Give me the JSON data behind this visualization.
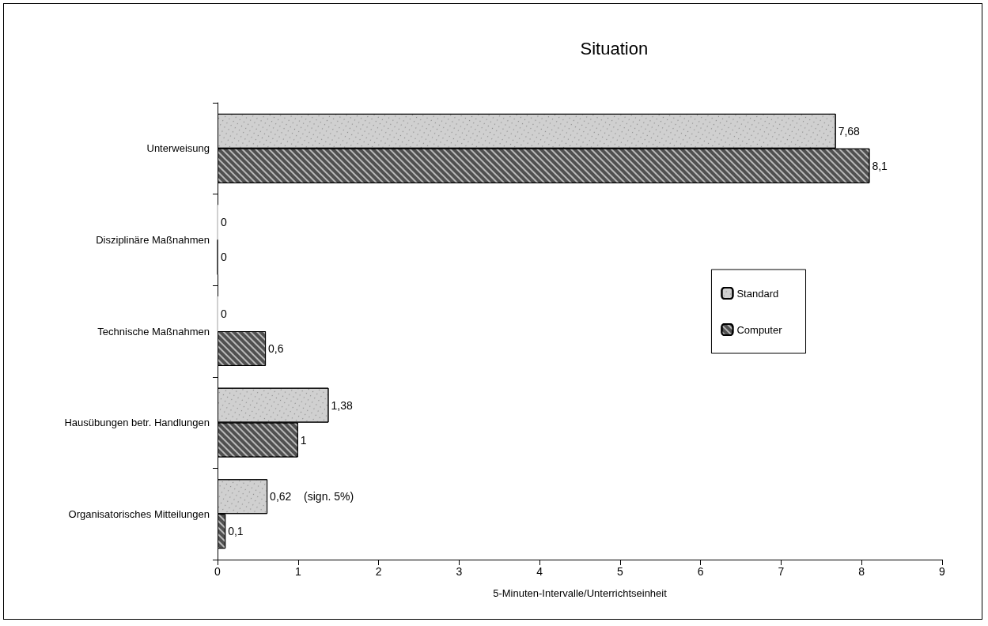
{
  "chart_data": {
    "type": "bar",
    "orientation": "horizontal",
    "title": "Situation",
    "xlabel": "5-Minuten-Intervalle/Unterrichtseinheit",
    "categories": [
      "Unterweisung",
      "Disziplinäre Maßnahmen",
      "Technische Maßnahmen",
      "Hausübungen betr. Handlungen",
      "Organisatorisches Mitteilungen"
    ],
    "series": [
      {
        "name": "Standard",
        "color": "#d0d0d0",
        "values": [
          7.68,
          0,
          0,
          1.38,
          0.62
        ],
        "value_labels": [
          "7,68",
          "0",
          "0",
          "1,38",
          "0,62"
        ]
      },
      {
        "name": "Computer",
        "color": "#505050",
        "values": [
          8.1,
          0,
          0.6,
          1,
          0.1
        ],
        "value_labels": [
          "8,1",
          "0",
          "0,6",
          "1",
          "0,1"
        ]
      }
    ],
    "annotations": [
      "(sign. 5%)"
    ],
    "xlim": [
      0,
      9
    ],
    "xticks": [
      0,
      1,
      2,
      3,
      4,
      5,
      6,
      7,
      8,
      9
    ],
    "grid": false,
    "legend": "right"
  }
}
